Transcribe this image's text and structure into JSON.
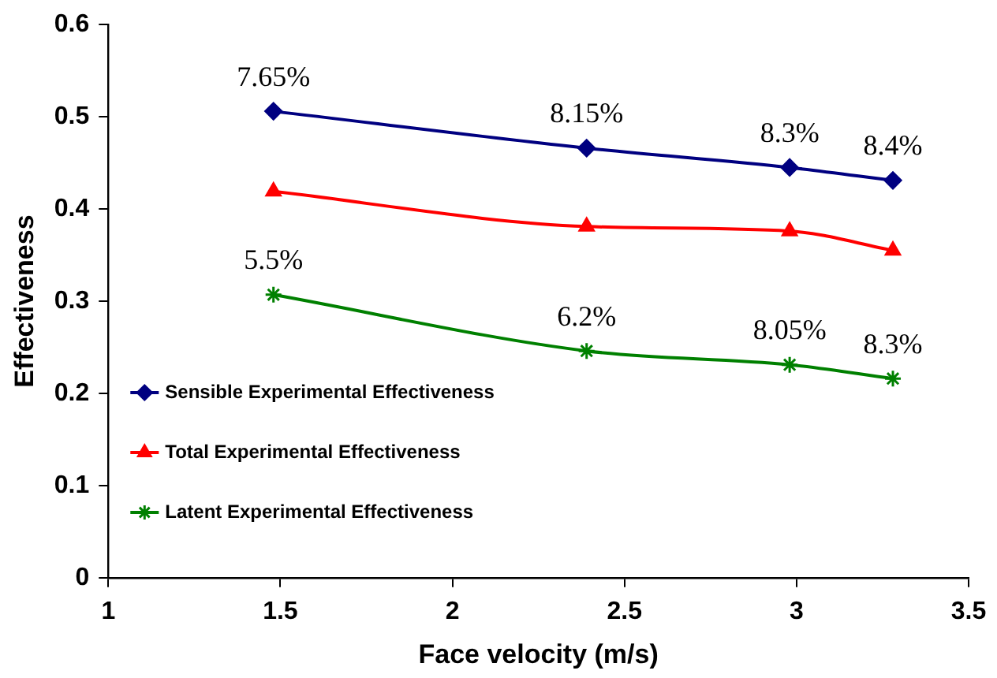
{
  "chart_data": {
    "type": "line",
    "xlabel": "Face velocity (m/s)",
    "ylabel": "Effectiveness",
    "xlim": [
      1,
      3.5
    ],
    "xticks": [
      1,
      1.5,
      2,
      2.5,
      3,
      3.5
    ],
    "ylim": [
      0,
      0.6
    ],
    "yticks": [
      0,
      0.1,
      0.2,
      0.3,
      0.4,
      0.5,
      0.6
    ],
    "x": [
      1.48,
      2.39,
      2.98,
      3.28
    ],
    "grid": false,
    "legend": "left",
    "annotations": [
      {
        "text": "7.65%",
        "x": 1.48,
        "y": 0.506
      },
      {
        "text": "8.15%",
        "x": 2.39,
        "y": 0.466
      },
      {
        "text": "8.3%",
        "x": 2.98,
        "y": 0.445
      },
      {
        "text": "8.4%",
        "x": 3.28,
        "y": 0.431
      },
      {
        "text": "5.5%",
        "x": 1.48,
        "y": 0.307
      },
      {
        "text": "6.2%",
        "x": 2.39,
        "y": 0.246
      },
      {
        "text": "8.05%",
        "x": 2.98,
        "y": 0.231
      },
      {
        "text": "8.3%",
        "x": 3.28,
        "y": 0.216
      }
    ],
    "series": [
      {
        "name": "Sensible Experimental Effectiveness",
        "color": "#000080",
        "marker": "diamond",
        "values": [
          0.506,
          0.466,
          0.445,
          0.431
        ]
      },
      {
        "name": "Total Experimental Effectiveness",
        "color": "#ff0000",
        "marker": "triangle",
        "values": [
          0.419,
          0.381,
          0.376,
          0.355
        ]
      },
      {
        "name": "Latent Experimental Effectiveness",
        "color": "#008000",
        "marker": "cross",
        "values": [
          0.307,
          0.246,
          0.231,
          0.216
        ]
      }
    ]
  }
}
